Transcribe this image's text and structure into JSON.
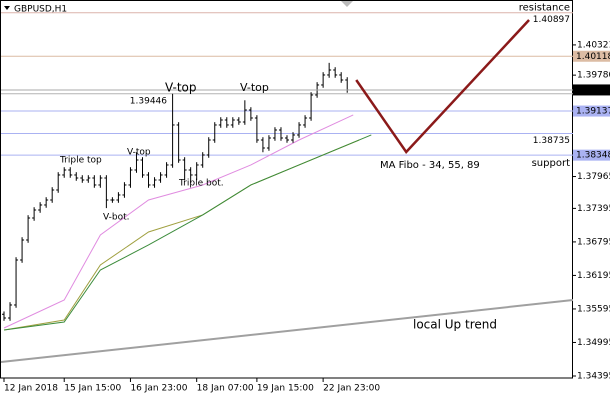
{
  "chart_data": {
    "type": "ohlc",
    "title": "GBPUSD,H1",
    "x": [
      "12 Jan 2018",
      null,
      null,
      null,
      null,
      null,
      null,
      null,
      null,
      null,
      "15 Jan 15:00",
      null,
      null,
      null,
      null,
      null,
      null,
      null,
      null,
      null,
      null,
      "16 Jan 23:00",
      null,
      null,
      null,
      null,
      null,
      null,
      null,
      null,
      null,
      null,
      "18 Jan 07:00",
      null,
      null,
      null,
      null,
      null,
      null,
      null,
      null,
      null,
      "19 Jan 15:00",
      null,
      null,
      null,
      null,
      null,
      null,
      null,
      null,
      null,
      null,
      "22 Jan 23:00",
      null,
      null,
      null,
      null
    ],
    "open": [
      1.355,
      1.35433,
      1.35666,
      1.36471,
      1.36829,
      1.37223,
      1.37366,
      1.37456,
      1.37545,
      1.37724,
      1.37993,
      1.38082,
      1.37993,
      1.37939,
      1.37903,
      1.37939,
      1.37814,
      1.37939,
      1.37545,
      1.37545,
      1.37635,
      1.37814,
      1.38082,
      1.38261,
      1.37993,
      1.37814,
      1.37903,
      1.37993,
      1.38172,
      1.38888,
      1.38261,
      1.38082,
      1.37993,
      1.38172,
      1.38351,
      1.38619,
      1.38888,
      1.38977,
      1.38888,
      1.38977,
      1.38941,
      1.39156,
      1.39013,
      1.38619,
      1.38476,
      1.38655,
      1.38798,
      1.38655,
      1.38619,
      1.38709,
      1.38888,
      1.39013,
      1.39425,
      1.39604,
      1.39783,
      1.39872,
      1.39783,
      1.39693
    ],
    "high": [
      1.3555,
      1.35716,
      1.36521,
      1.36879,
      1.37273,
      1.37416,
      1.37506,
      1.37595,
      1.37774,
      1.38043,
      1.38132,
      1.38132,
      1.38043,
      1.37989,
      1.37989,
      1.37989,
      1.37989,
      1.37989,
      1.37595,
      1.37685,
      1.37864,
      1.38132,
      1.384,
      1.38311,
      1.38043,
      1.37953,
      1.38043,
      1.38222,
      1.39446,
      1.38938,
      1.38311,
      1.38132,
      1.38222,
      1.38401,
      1.38669,
      1.38938,
      1.39027,
      1.39027,
      1.39027,
      1.39027,
      1.3933,
      1.39206,
      1.39063,
      1.38669,
      1.38705,
      1.38848,
      1.38848,
      1.38705,
      1.38759,
      1.38938,
      1.39063,
      1.39475,
      1.39654,
      1.39833,
      1.4,
      1.39922,
      1.39833,
      1.39743
    ],
    "low": [
      1.35383,
      1.35383,
      1.35616,
      1.36421,
      1.36779,
      1.37173,
      1.37316,
      1.37406,
      1.37495,
      1.37674,
      1.37943,
      1.37943,
      1.37889,
      1.37853,
      1.37853,
      1.37764,
      1.37764,
      1.374,
      1.37495,
      1.37495,
      1.37585,
      1.37764,
      1.38032,
      1.37943,
      1.37764,
      1.37764,
      1.37853,
      1.37943,
      1.38122,
      1.38211,
      1.379,
      1.3785,
      1.379,
      1.38122,
      1.38301,
      1.38569,
      1.38838,
      1.38838,
      1.38838,
      1.38891,
      1.38891,
      1.38963,
      1.38569,
      1.384,
      1.38426,
      1.38605,
      1.38605,
      1.38569,
      1.38569,
      1.38659,
      1.38838,
      1.38963,
      1.39375,
      1.39554,
      1.39733,
      1.39733,
      1.39643,
      1.39465
    ],
    "close": [
      1.35433,
      1.35666,
      1.36471,
      1.36829,
      1.37223,
      1.37366,
      1.37456,
      1.37545,
      1.37724,
      1.37993,
      1.38082,
      1.37993,
      1.37939,
      1.37903,
      1.37939,
      1.37814,
      1.37939,
      1.37545,
      1.37545,
      1.37635,
      1.37814,
      1.38082,
      1.38261,
      1.37993,
      1.37814,
      1.37903,
      1.37993,
      1.38172,
      1.38888,
      1.38261,
      1.38082,
      1.37993,
      1.38172,
      1.38351,
      1.38619,
      1.38888,
      1.38977,
      1.38888,
      1.38977,
      1.38941,
      1.39156,
      1.39013,
      1.38619,
      1.38476,
      1.38655,
      1.38798,
      1.38655,
      1.38619,
      1.38709,
      1.38888,
      1.39013,
      1.39425,
      1.39604,
      1.39783,
      1.39872,
      1.39783,
      1.39693,
      1.39515
    ],
    "color": "#000000",
    "xlim": [
      -0.5,
      94.5
    ],
    "ylim": [
      1.34359,
      1.41107
    ],
    "yticks": [
      1.40321,
      {
        "value": 1.3978,
        "label": "1.39780"
      },
      1.37965,
      1.37395,
      1.36795,
      1.36195,
      1.35595,
      1.34995,
      1.34395
    ],
    "levels": [
      {
        "value": 1.40897,
        "color": "#dcb4ac",
        "style": "top-right",
        "text": "resistance"
      },
      {
        "value": 1.40118,
        "color": "#dcbca4",
        "style": "box"
      },
      {
        "value": 1.39446,
        "color": "#b4b4b4",
        "style": "inside-left"
      },
      {
        "value": 1.39137,
        "color": "#aab2f2",
        "style": "box"
      },
      {
        "value": 1.38735,
        "color": "#aab2f2",
        "style": "inside-right"
      },
      {
        "value": 1.38348,
        "color": "#aab2f2",
        "style": "box",
        "text": "support"
      }
    ],
    "ma": {
      "label": "MA Fibo - 34, 55, 89",
      "series": [
        {
          "color": "#e08ce0",
          "x": [
            0,
            10,
            16,
            24,
            33,
            41,
            49,
            58
          ],
          "values": [
            1.35254,
            1.35755,
            1.36919,
            1.37545,
            1.37814,
            1.38172,
            1.38619,
            1.39067
          ]
        },
        {
          "color": "#a0a040",
          "x": [
            0,
            10,
            16,
            24,
            33,
            41,
            49,
            59
          ],
          "values": [
            1.35218,
            1.35397,
            1.36382,
            1.36972,
            1.37277,
            1.37814,
            1.38172,
            1.38619
          ]
        },
        {
          "color": "#3c8c3c",
          "x": [
            0,
            10,
            16,
            24,
            33,
            41,
            49,
            61
          ],
          "values": [
            1.35218,
            1.35361,
            1.36292,
            1.3674,
            1.37277,
            1.37814,
            1.38172,
            1.38709
          ]
        }
      ]
    },
    "trend": {
      "text": "local  Up trend",
      "color": "#a0a0a0",
      "x": [
        -0.5,
        94.5
      ],
      "values": [
        1.34645,
        1.35755
      ]
    },
    "projection": {
      "color": "#8b1a1a",
      "x": [
        58.5,
        66.8,
        87.2
      ],
      "values": [
        1.39693,
        1.38404,
        1.40767
      ]
    },
    "annotations": [
      {
        "text": "V-top",
        "color": "#1e5e1e"
      },
      {
        "text": "V-top",
        "color": "#1e5e1e"
      },
      {
        "text": "Triple top",
        "color": "#1e5e1e"
      },
      {
        "text": "V-top",
        "color": "#1e5e1e"
      },
      {
        "text": "V-bot.",
        "color": "#1e5e1e"
      },
      {
        "text": "Triple bot.",
        "color": "#1e5e1e"
      }
    ]
  }
}
